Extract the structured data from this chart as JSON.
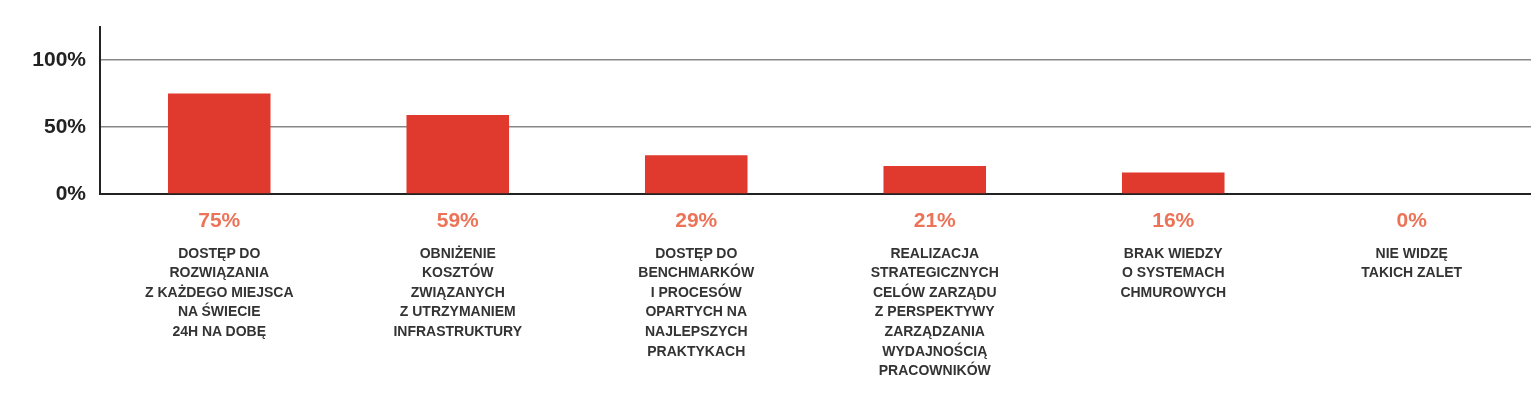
{
  "chart_data": {
    "type": "bar",
    "categories": [
      "DOSTĘP DO\nROZWIĄZANIA\nZ KAŻDEGO MIEJSCA\nNA ŚWIECIE\n24H NA DOBĘ",
      "OBNIŻENIE\nKOSZTÓW\nZWIĄZANYCH\nZ UTRZYMANIEM\nINFRASTRUKTURY",
      "DOSTĘP DO\nBENCHMARKÓW\nI PROCESÓW\nOPARTYCH NA\nNAJLEPSZYCH\nPRAKTYKACH",
      "REALIZACJA\nSTRATEGICZNYCH\nCELÓW ZARZĄDU\nZ PERSPEKTYWY\nZARZĄDZANIA\nWYDAJNOŚCIĄ\nPRACOWNIKÓW",
      "BRAK WIEDZY\nO SYSTEMACH\nCHMUROWYCH",
      "NIE WIDZĘ\nTAKICH ZALET"
    ],
    "values": [
      75,
      59,
      29,
      21,
      16,
      0
    ],
    "value_labels": [
      "75%",
      "59%",
      "29%",
      "21%",
      "16%",
      "0%"
    ],
    "color": "#e03a2e",
    "ylim": [
      0,
      125
    ],
    "yticks": [
      {
        "value": 0,
        "label": "0%"
      },
      {
        "value": 50,
        "label": "50%"
      },
      {
        "value": 100,
        "label": "100%"
      }
    ],
    "grid": "y"
  }
}
